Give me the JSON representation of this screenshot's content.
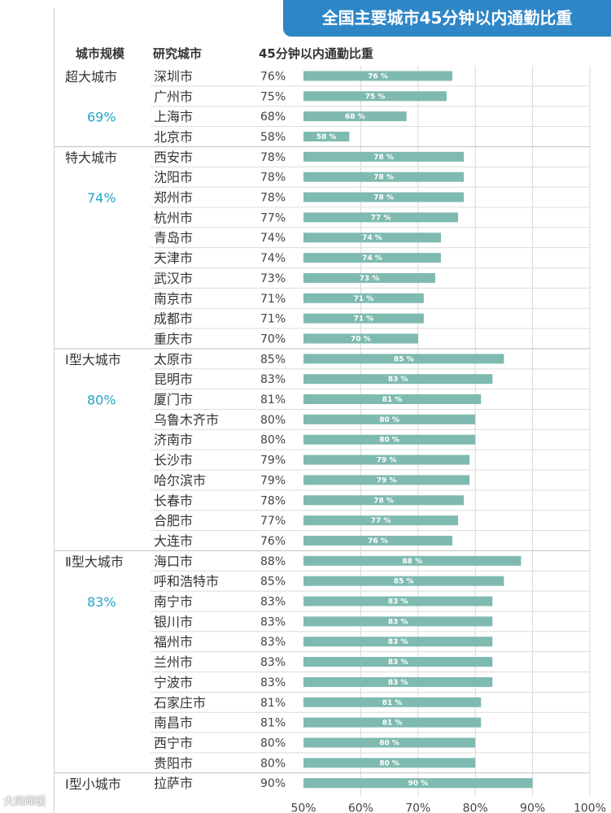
{
  "title": "全国主要城市45分钟以内通勤比重",
  "headers": {
    "scale": "城市规模",
    "city": "研究城市",
    "ratio": "45分钟以内通勤比重"
  },
  "watermark": "大凤晖暖",
  "colors": {
    "bar": "#7fbab0",
    "group_pct": "#1ea6c8",
    "title_bg": "#2f86c6"
  },
  "chart_data": {
    "type": "bar",
    "orientation": "horizontal",
    "title": "全国主要城市45分钟以内通勤比重",
    "xlim": [
      50,
      100
    ],
    "x_ticks": [
      "50%",
      "60%",
      "70%",
      "80%",
      "90%",
      "100%"
    ],
    "grid": true,
    "groups": [
      {
        "name": "超大城市",
        "avg": "69%",
        "cities": [
          {
            "city": "深圳市",
            "value": 76
          },
          {
            "city": "广州市",
            "value": 75
          },
          {
            "city": "上海市",
            "value": 68
          },
          {
            "city": "北京市",
            "value": 58
          }
        ]
      },
      {
        "name": "特大城市",
        "avg": "74%",
        "cities": [
          {
            "city": "西安市",
            "value": 78
          },
          {
            "city": "沈阳市",
            "value": 78
          },
          {
            "city": "郑州市",
            "value": 78
          },
          {
            "city": "杭州市",
            "value": 77
          },
          {
            "city": "青岛市",
            "value": 74
          },
          {
            "city": "天津市",
            "value": 74
          },
          {
            "city": "武汉市",
            "value": 73
          },
          {
            "city": "南京市",
            "value": 71
          },
          {
            "city": "成都市",
            "value": 71
          },
          {
            "city": "重庆市",
            "value": 70
          }
        ]
      },
      {
        "name": "Ⅰ型大城市",
        "avg": "80%",
        "cities": [
          {
            "city": "太原市",
            "value": 85
          },
          {
            "city": "昆明市",
            "value": 83
          },
          {
            "city": "厦门市",
            "value": 81
          },
          {
            "city": "乌鲁木齐市",
            "value": 80
          },
          {
            "city": "济南市",
            "value": 80
          },
          {
            "city": "长沙市",
            "value": 79
          },
          {
            "city": "哈尔滨市",
            "value": 79
          },
          {
            "city": "长春市",
            "value": 78
          },
          {
            "city": "合肥市",
            "value": 77
          },
          {
            "city": "大连市",
            "value": 76
          }
        ]
      },
      {
        "name": "Ⅱ型大城市",
        "avg": "83%",
        "cities": [
          {
            "city": "海口市",
            "value": 88
          },
          {
            "city": "呼和浩特市",
            "value": 85
          },
          {
            "city": "南宁市",
            "value": 83
          },
          {
            "city": "银川市",
            "value": 83
          },
          {
            "city": "福州市",
            "value": 83
          },
          {
            "city": "兰州市",
            "value": 83
          },
          {
            "city": "宁波市",
            "value": 83
          },
          {
            "city": "石家庄市",
            "value": 81
          },
          {
            "city": "南昌市",
            "value": 81
          },
          {
            "city": "西宁市",
            "value": 80
          },
          {
            "city": "贵阳市",
            "value": 80
          }
        ]
      },
      {
        "name": "Ⅰ型小城市",
        "avg": "",
        "cities": [
          {
            "city": "拉萨市",
            "value": 90
          }
        ]
      }
    ]
  }
}
